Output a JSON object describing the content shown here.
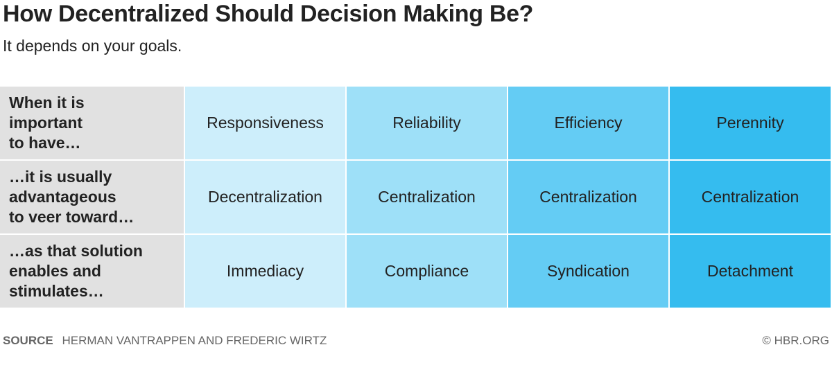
{
  "header": {
    "title": "How Decentralized Should Decision Making Be?",
    "subtitle": "It depends on your goals."
  },
  "chart_data": {
    "type": "table",
    "row_headers": [
      "When it is\nimportant\nto have…",
      "…it is usually\nadvantageous\nto veer toward…",
      "…as that solution\nenables and\nstimulates…"
    ],
    "columns": [
      {
        "cells": [
          "Responsiveness",
          "Decentralization",
          "Immediacy"
        ],
        "color": "#cdeefb"
      },
      {
        "cells": [
          "Reliability",
          "Centralization",
          "Compliance"
        ],
        "color": "#9ee0f8"
      },
      {
        "cells": [
          "Efficiency",
          "Centralization",
          "Syndication"
        ],
        "color": "#64ccf4"
      },
      {
        "cells": [
          "Perennity",
          "Centralization",
          "Detachment"
        ],
        "color": "#35bcef"
      }
    ],
    "row_header_color": "#e1e1e1"
  },
  "footer": {
    "source_label": "SOURCE",
    "source_text": "HERMAN VANTRAPPEN AND FREDERIC WIRTZ",
    "credit": "© HBR.ORG"
  }
}
